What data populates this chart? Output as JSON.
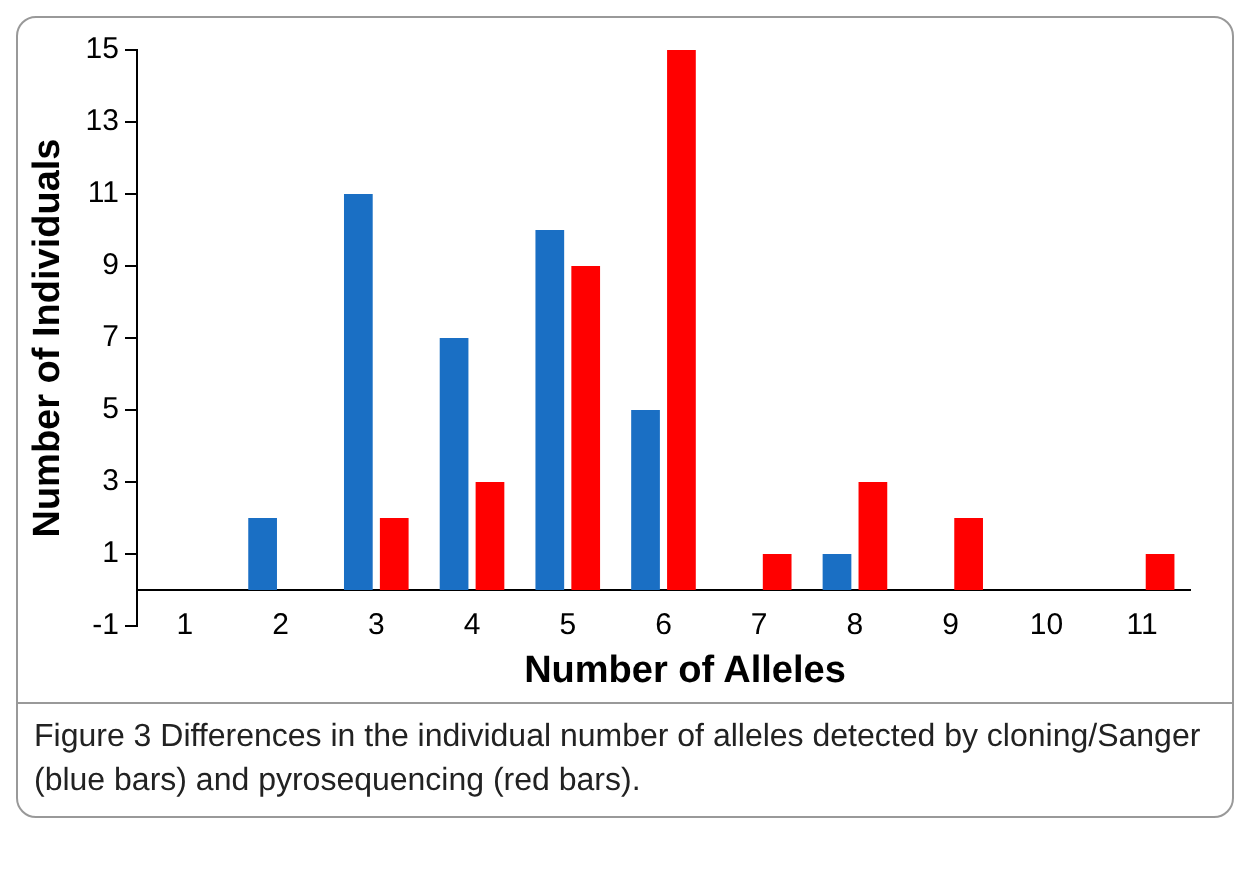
{
  "chart_data": {
    "type": "bar",
    "xlabel": "Number of Alleles",
    "ylabel": "Number of Individuals",
    "categories": [
      "1",
      "2",
      "3",
      "4",
      "5",
      "6",
      "7",
      "8",
      "9",
      "10",
      "11"
    ],
    "series": [
      {
        "color": "#1a6fc4",
        "values": [
          0,
          2,
          11,
          7,
          10,
          5,
          0,
          1,
          0,
          0,
          0
        ]
      },
      {
        "color": "#ff0000",
        "values": [
          0,
          0,
          2,
          3,
          9,
          15,
          1,
          3,
          2,
          0,
          1
        ]
      }
    ],
    "ylim": [
      -1,
      15
    ],
    "yticks": [
      -1,
      1,
      3,
      5,
      7,
      9,
      11,
      13,
      15
    ],
    "grid": false,
    "legend": false,
    "annotations": [
      "Figure 3 Differences in the individual number of alleles detected by cloning/Sanger (blue bars) and pyrosequencing (red bars)."
    ]
  }
}
